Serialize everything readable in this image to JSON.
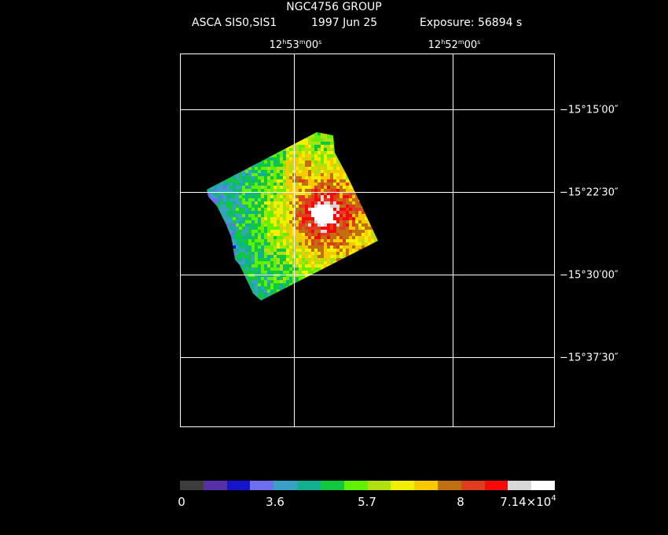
{
  "header": {
    "title": "NGC4756 GROUP",
    "instrument": "ASCA SIS0,SIS1",
    "date": "1997 Jun 25",
    "exposure": "Exposure: 56894 s"
  },
  "axes": {
    "ra_ticks": [
      {
        "h": "12",
        "m": "53",
        "s": "00"
      },
      {
        "h": "12",
        "m": "52",
        "s": "00"
      }
    ],
    "dec_ticks": [
      "−15°15′00″",
      "−15°22′30″",
      "−15°30′00″",
      "−15°37′30″"
    ]
  },
  "colorbar": {
    "labels": [
      "0",
      "3.6",
      "5.7",
      "8",
      "7.14×10"
    ],
    "exponent": "4",
    "colors": [
      "#3d3d3d",
      "#5530a8",
      "#1414cc",
      "#6e6ef0",
      "#3aa0c8",
      "#10b090",
      "#10c840",
      "#60f000",
      "#b0e010",
      "#f0f000",
      "#f8c800",
      "#c07010",
      "#e03c20",
      "#f80808",
      "#d8d8d8",
      "#ffffff"
    ]
  },
  "image": {
    "background": "#000000",
    "frame_color": "#ffffff"
  }
}
